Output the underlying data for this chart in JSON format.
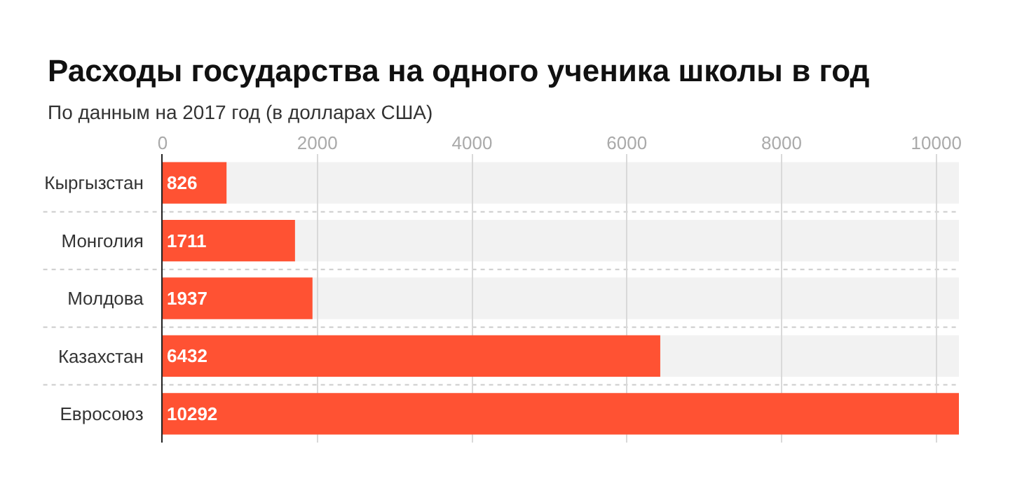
{
  "chart_data": {
    "type": "bar",
    "orientation": "horizontal",
    "title": "Расходы государства на одного ученика школы в год",
    "subtitle": "По данным на 2017 год (в долларах США)",
    "categories": [
      "Кыргызстан",
      "Монголия",
      "Молдова",
      "Казахстан",
      "Евросоюз"
    ],
    "values": [
      826,
      1711,
      1937,
      6432,
      10292
    ],
    "color": "#ff5233",
    "data_labels": true,
    "xlim": [
      0,
      10292
    ],
    "xticks": [
      0,
      2000,
      4000,
      6000,
      8000,
      10000
    ],
    "grid": "x",
    "legend": false
  }
}
